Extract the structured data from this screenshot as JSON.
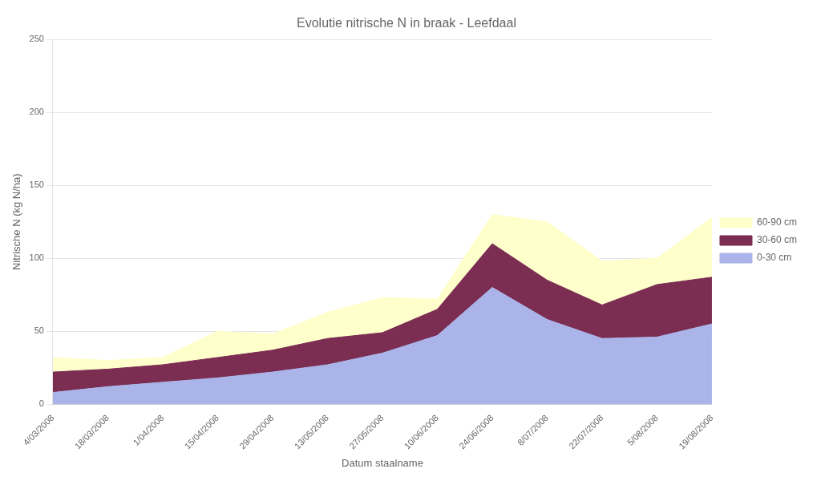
{
  "chart_data": {
    "type": "area",
    "title": "Evolutie nitrische N in braak - Leefdaal",
    "x_label": "Datum staalname",
    "y_label": "Nitrische N (kg N/ha)",
    "categories": [
      "4/03/2008",
      "18/03/2008",
      "1/04/2008",
      "15/04/2008",
      "29/04/2008",
      "13/05/2008",
      "27/05/2008",
      "10/06/2008",
      "24/06/2008",
      "8/07/2008",
      "22/07/2008",
      "5/08/2008",
      "19/08/2008"
    ],
    "series": [
      {
        "name": "0-30 cm",
        "color": "#aab4e8",
        "values": [
          8,
          12,
          15,
          18,
          22,
          27,
          35,
          47,
          80,
          58,
          45,
          46,
          55
        ]
      },
      {
        "name": "30-60 cm",
        "color": "#7b2d52",
        "values": [
          14,
          12,
          12,
          14,
          15,
          18,
          14,
          18,
          30,
          27,
          23,
          36,
          32
        ]
      },
      {
        "name": "60-90 cm",
        "color": "#ffffcc",
        "values": [
          10,
          6,
          5,
          18,
          11,
          18,
          24,
          7,
          20,
          40,
          30,
          18,
          41
        ]
      }
    ],
    "stacked": true,
    "ylim": [
      0,
      250
    ],
    "yticks": [
      0,
      50,
      100,
      150,
      200,
      250
    ],
    "grid": "y",
    "legend": "right"
  }
}
